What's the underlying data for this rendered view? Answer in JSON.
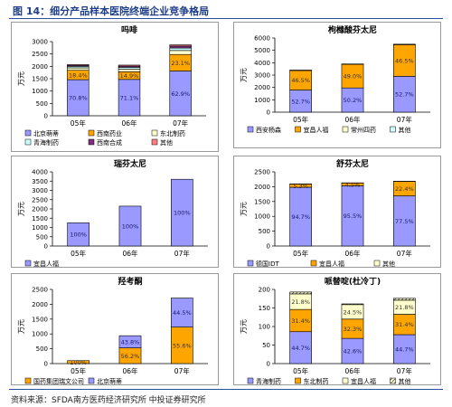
{
  "figure_title": "图 14：细分产品样本医院终端企业竞争格局",
  "source": "资料来源：SFDA南方医药经济研究所 中投证券研究所",
  "chart_data": [
    {
      "type": "bar",
      "stacked": true,
      "title": "吗啡",
      "ylabel": "万元",
      "categories": [
        "05年",
        "06年",
        "07年"
      ],
      "ylim": [
        0,
        3000
      ],
      "yticks": [
        0,
        500,
        1000,
        1500,
        2000,
        2500,
        3000
      ],
      "legend": "bottom",
      "series": [
        {
          "name": "北京萌蒂",
          "color": "#9999ff",
          "pattern": "solid",
          "values": [
            1460,
            1470,
            1810
          ],
          "labels": [
            "70.8%",
            "71.1%",
            "62.9%"
          ]
        },
        {
          "name": "西南药业",
          "color": "#ffa500",
          "pattern": "solid",
          "values": [
            380,
            310,
            670
          ],
          "labels": [
            "18.4%",
            "14.9%",
            "23.1%"
          ]
        },
        {
          "name": "东北制药",
          "color": "#ffffcc",
          "pattern": "solid",
          "values": [
            100,
            110,
            160
          ],
          "labels": [
            "",
            "",
            ""
          ]
        },
        {
          "name": "青海制药",
          "color": "#ccffff",
          "pattern": "solid",
          "values": [
            60,
            70,
            100
          ],
          "labels": [
            "",
            "",
            ""
          ]
        },
        {
          "name": "西南合成",
          "color": "#7f2f7f",
          "pattern": "solid",
          "values": [
            40,
            50,
            80
          ],
          "labels": [
            "",
            "",
            ""
          ]
        },
        {
          "name": "其他",
          "color": "#ff8080",
          "pattern": "solid",
          "values": [
            30,
            40,
            50
          ],
          "labels": [
            "",
            "",
            ""
          ]
        }
      ]
    },
    {
      "type": "bar",
      "stacked": true,
      "title": "枸橼酸芬太尼",
      "ylabel": "万元",
      "categories": [
        "05年",
        "06年",
        "07年"
      ],
      "ylim": [
        0,
        6000
      ],
      "yticks": [
        0,
        1000,
        2000,
        3000,
        4000,
        5000,
        6000
      ],
      "legend": "bottom",
      "series": [
        {
          "name": "西安杨森",
          "color": "#9999ff",
          "pattern": "solid",
          "values": [
            1790,
            1960,
            2900
          ],
          "labels": [
            "52.7%",
            "50.2%",
            "52.7%"
          ]
        },
        {
          "name": "宜昌人福",
          "color": "#ffa500",
          "pattern": "solid",
          "values": [
            1580,
            1910,
            2560
          ],
          "labels": [
            "46.5%",
            "49.0%",
            "46.5%"
          ]
        },
        {
          "name": "常州四药",
          "color": "#ffffcc",
          "pattern": "solid",
          "values": [
            15,
            15,
            20
          ],
          "labels": [
            "",
            "",
            ""
          ]
        },
        {
          "name": "其他",
          "color": "#ccffff",
          "pattern": "solid",
          "values": [
            15,
            15,
            20
          ],
          "labels": [
            "",
            "",
            ""
          ]
        }
      ]
    },
    {
      "type": "bar",
      "stacked": true,
      "title": "瑞芬太尼",
      "ylabel": "万元",
      "categories": [
        "05年",
        "06年",
        "07年"
      ],
      "ylim": [
        0,
        4000
      ],
      "yticks": [
        0,
        500,
        1000,
        1500,
        2000,
        2500,
        3000,
        3500,
        4000
      ],
      "legend": "bottom",
      "series": [
        {
          "name": "宜昌人福",
          "color": "#9999ff",
          "pattern": "solid",
          "values": [
            1250,
            2150,
            3600
          ],
          "labels": [
            "100%",
            "100%",
            "100%"
          ]
        }
      ]
    },
    {
      "type": "bar",
      "stacked": true,
      "title": "舒芬太尼",
      "ylabel": "万元",
      "categories": [
        "05年",
        "06年",
        "07年"
      ],
      "ylim": [
        0,
        2500
      ],
      "yticks": [
        0,
        500,
        1000,
        1500,
        2000,
        2500
      ],
      "legend": "bottom",
      "series": [
        {
          "name": "德国IDT",
          "color": "#9999ff",
          "pattern": "solid",
          "values": [
            1980,
            2030,
            1690
          ],
          "labels": [
            "94.7%",
            "95.5%",
            "77.5%"
          ]
        },
        {
          "name": "宜昌人福",
          "color": "#ffa500",
          "pattern": "solid",
          "values": [
            110,
            95,
            490
          ],
          "labels": [
            "5.3%",
            "4.5%",
            "22.4%"
          ]
        },
        {
          "name": "其他",
          "color": "#ffffcc",
          "pattern": "solid",
          "values": [
            5,
            5,
            5
          ],
          "labels": [
            "",
            "",
            ""
          ]
        }
      ]
    },
    {
      "type": "bar",
      "stacked": true,
      "title": "羟考酮",
      "ylabel": "万元",
      "categories": [
        "05年",
        "06年",
        "07年"
      ],
      "ylim": [
        0,
        2500
      ],
      "yticks": [
        0,
        500,
        1000,
        1500,
        2000,
        2500
      ],
      "legend": "bottom",
      "series": [
        {
          "name": "国药集团瑞文公司",
          "color": "#ffa500",
          "pattern": "solid",
          "values": [
            100,
            530,
            1230
          ],
          "labels": [
            "100%",
            "56.2%",
            "55.6%"
          ]
        },
        {
          "name": "北京萌蒂",
          "color": "#9999ff",
          "pattern": "solid",
          "values": [
            0,
            410,
            980
          ],
          "labels": [
            "",
            "43.8%",
            "44.5%"
          ]
        }
      ]
    },
    {
      "type": "bar",
      "stacked": true,
      "title": "哌替啶(杜冷丁)",
      "ylabel": "万元",
      "categories": [
        "05年",
        "06年",
        "07年"
      ],
      "ylim": [
        0,
        200
      ],
      "yticks": [
        0,
        50,
        100,
        150,
        200
      ],
      "legend": "bottom",
      "series": [
        {
          "name": "青海制药",
          "color": "#9999ff",
          "pattern": "solid",
          "values": [
            86,
            68,
            78
          ],
          "labels": [
            "44.7%",
            "42.6%",
            "44.7%"
          ]
        },
        {
          "name": "东北制药",
          "color": "#ffa500",
          "pattern": "solid",
          "values": [
            60,
            52,
            55
          ],
          "labels": [
            "31.4%",
            "32.3%",
            "31.4%"
          ]
        },
        {
          "name": "宜昌人福",
          "color": "#ffffcc",
          "pattern": "solid",
          "values": [
            42,
            39,
            38
          ],
          "labels": [
            "21.8%",
            "24.5%",
            "21.8%"
          ]
        },
        {
          "name": "其他",
          "color": "#ffffcc",
          "pattern": "hatch",
          "values": [
            5,
            2,
            5
          ],
          "labels": [
            "",
            "",
            ""
          ]
        }
      ]
    }
  ]
}
